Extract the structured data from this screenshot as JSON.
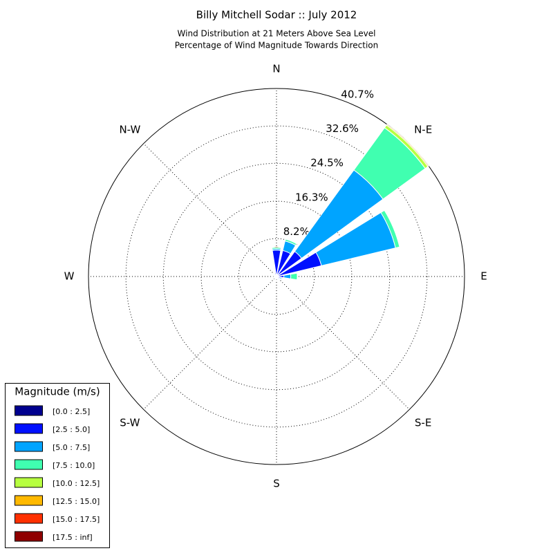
{
  "chart_data": {
    "type": "windrose",
    "title": "Billy Mitchell Sodar :: July 2012",
    "subtitle": [
      "Wind Distribution at 21 Meters Above Sea Level",
      "Percentage of Wind Magnitude Towards Direction"
    ],
    "legend_title": "Magnitude (m/s)",
    "legend": "lower left",
    "grid": true,
    "x": [
      0,
      22.5,
      45,
      67.5,
      90,
      112.5,
      135,
      157.5,
      180,
      202.5,
      225,
      247.5,
      270,
      292.5,
      315,
      337.5
    ],
    "xticks": [
      {
        "value": 0,
        "label": "N"
      },
      {
        "value": 45,
        "label": "N-E"
      },
      {
        "value": 90,
        "label": "E"
      },
      {
        "value": 135,
        "label": "S-E"
      },
      {
        "value": 180,
        "label": "S"
      },
      {
        "value": 225,
        "label": "S-W"
      },
      {
        "value": 270,
        "label": "W"
      },
      {
        "value": 315,
        "label": "N-W"
      }
    ],
    "ylim": [
      0,
      40.7
    ],
    "yticks": [
      {
        "value": 8.2,
        "label": "8.2%"
      },
      {
        "value": 16.3,
        "label": "16.3%"
      },
      {
        "value": 24.5,
        "label": "24.5%"
      },
      {
        "value": 32.6,
        "label": "32.6%"
      },
      {
        "value": 40.7,
        "label": "40.7%"
      }
    ],
    "series": [
      {
        "name": "[0.0 : 2.5]",
        "color": "#00008f",
        "values": [
          0.4,
          0.4,
          0.4,
          0.4,
          0.4,
          0.3,
          0.3,
          0.3,
          0.3,
          0.3,
          0.3,
          0.3,
          0.3,
          0.3,
          0.3,
          0.3
        ]
      },
      {
        "name": "[2.5 : 5.0]",
        "color": "#0010ff",
        "values": [
          5.3,
          5.4,
          6.3,
          9.6,
          1.2,
          0.5,
          0.3,
          0.2,
          0.2,
          0.2,
          0.2,
          0.2,
          0.2,
          0.2,
          0.3,
          0.5
        ]
      },
      {
        "name": "[5.0 : 7.5]",
        "color": "#00a4ff",
        "values": [
          0.3,
          2.1,
          21.8,
          16.5,
          1.5,
          0.3,
          0.2,
          0.1,
          0.1,
          0.1,
          0.1,
          0.1,
          0.1,
          0.1,
          0.1,
          0.1
        ]
      },
      {
        "name": "[7.5 : 10.0]",
        "color": "#40ffb0",
        "values": [
          0.3,
          0.4,
          11.3,
          0.9,
          1.4,
          0.2,
          0,
          0,
          0,
          0,
          0,
          0,
          0,
          0,
          0,
          0
        ]
      },
      {
        "name": "[10.0 : 12.5]",
        "color": "#b7ff40",
        "values": [
          0,
          0,
          0.7,
          0,
          0,
          0,
          0,
          0,
          0,
          0,
          0,
          0,
          0,
          0,
          0,
          0
        ]
      },
      {
        "name": "[12.5 : 15.0]",
        "color": "#ffb900",
        "values": [
          0,
          0,
          0.2,
          0,
          0,
          0,
          0,
          0,
          0,
          0,
          0,
          0,
          0,
          0,
          0,
          0
        ]
      },
      {
        "name": "[15.0 : 17.5]",
        "color": "#ff3000",
        "values": [
          0,
          0,
          0,
          0,
          0,
          0,
          0,
          0,
          0,
          0,
          0,
          0,
          0,
          0,
          0,
          0
        ]
      },
      {
        "name": "[17.5 : inf]",
        "color": "#8f0000",
        "values": [
          0,
          0,
          0,
          0,
          0,
          0,
          0,
          0,
          0,
          0,
          0,
          0,
          0,
          0,
          0,
          0
        ]
      }
    ]
  }
}
